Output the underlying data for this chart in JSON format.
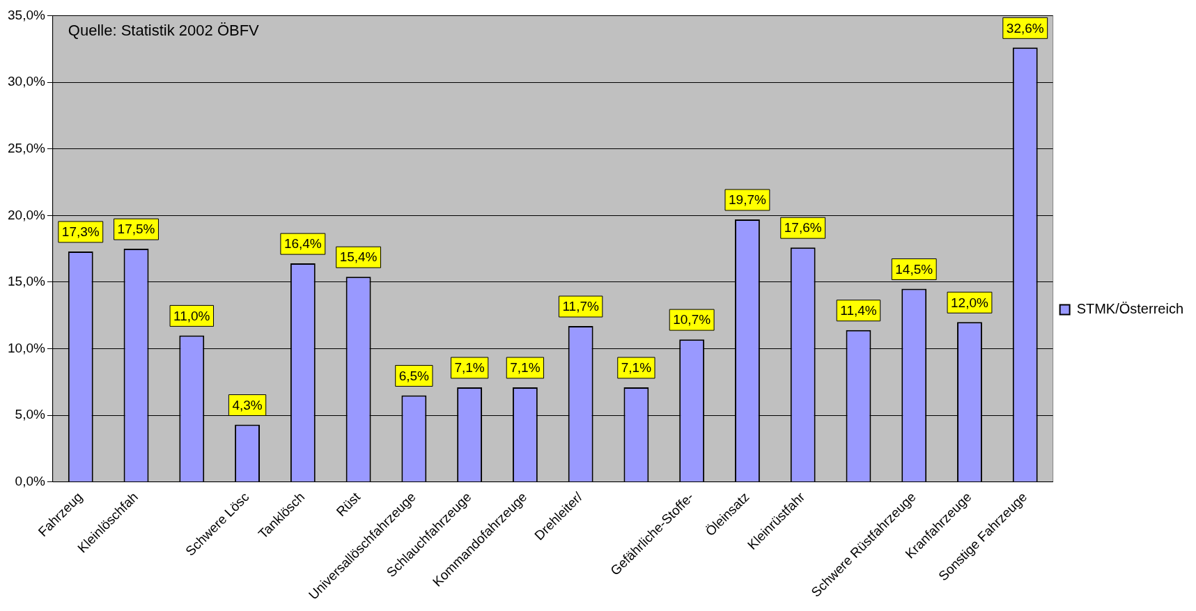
{
  "chart_data": {
    "type": "bar",
    "annotations": [
      "Quelle: Statistik 2002 ÖBFV"
    ],
    "categories": [
      "Fahrzeug",
      "Kleinlöschfah",
      null,
      "Schwere Lösc",
      "Tanklösch",
      "Rüst",
      "Universallöschfahrzeuge",
      "Schlauchfahrzeuge",
      "Kommandofahrzeuge",
      "Drehleiter/",
      null,
      "Gefährliche-Stoffe-",
      "Öleinsatz",
      "Kleinrüstfahr",
      null,
      "Schwere Rüstfahrzeuge",
      "Kranfahrzeuge",
      "Sonstige Fahrzeuge"
    ],
    "series": [
      {
        "name": "STMK/Österreich",
        "color": "#9999ff",
        "values": [
          17.3,
          17.5,
          11.0,
          4.3,
          16.4,
          15.4,
          6.5,
          7.1,
          7.1,
          11.7,
          7.1,
          10.7,
          19.7,
          17.6,
          11.4,
          14.5,
          12.0,
          32.6
        ],
        "value_labels": [
          "17,3%",
          "17,5%",
          "11,0%",
          "4,3%",
          "16,4%",
          "15,4%",
          "6,5%",
          "7,1%",
          "7,1%",
          "11,7%",
          "7,1%",
          "10,7%",
          "19,7%",
          "17,6%",
          "11,4%",
          "14,5%",
          "12,0%",
          "32,6%"
        ]
      }
    ],
    "ylim": [
      0,
      35
    ],
    "yticks": [
      {
        "value": 0,
        "label": "0,0%"
      },
      {
        "value": 5,
        "label": "5,0%"
      },
      {
        "value": 10,
        "label": "10,0%"
      },
      {
        "value": 15,
        "label": "15,0%"
      },
      {
        "value": 20,
        "label": "20,0%"
      },
      {
        "value": 25,
        "label": "25,0%"
      },
      {
        "value": 30,
        "label": "30,0%"
      },
      {
        "value": 35,
        "label": "35,0%"
      }
    ],
    "grid": "y",
    "legend": "right"
  }
}
